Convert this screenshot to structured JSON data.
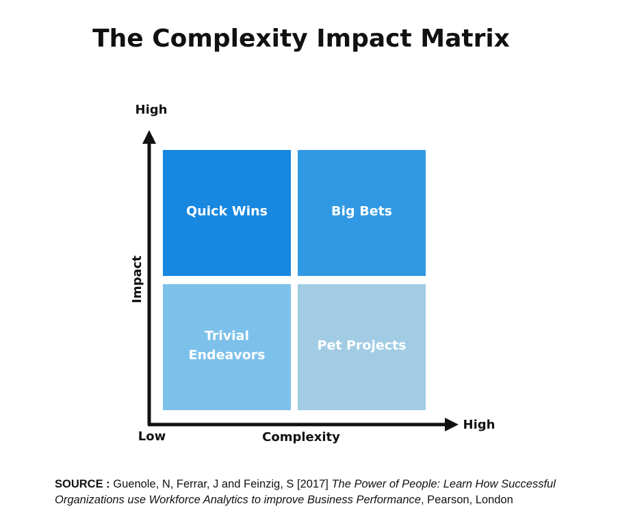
{
  "title": "The Complexity Impact Matrix",
  "y_axis": {
    "label": "Impact",
    "high": "High"
  },
  "x_axis": {
    "label": "Complexity",
    "low": "Low",
    "high": "High"
  },
  "quadrants": [
    {
      "lines": [
        "Quick Wins"
      ]
    },
    {
      "lines": [
        "Big Bets"
      ]
    },
    {
      "lines": [
        "Trivial",
        "Endeavors"
      ]
    },
    {
      "lines": [
        "Pet Projects"
      ]
    }
  ],
  "source": {
    "label": "SOURCE :",
    "authors": "Guenole, N, Ferrar, J and Feinzig, S [2017]",
    "work": "The Power of People: Learn How Successful Organizations use Workforce Analytics to improve Business Performance",
    "publisher": ", Pearson, London"
  }
}
